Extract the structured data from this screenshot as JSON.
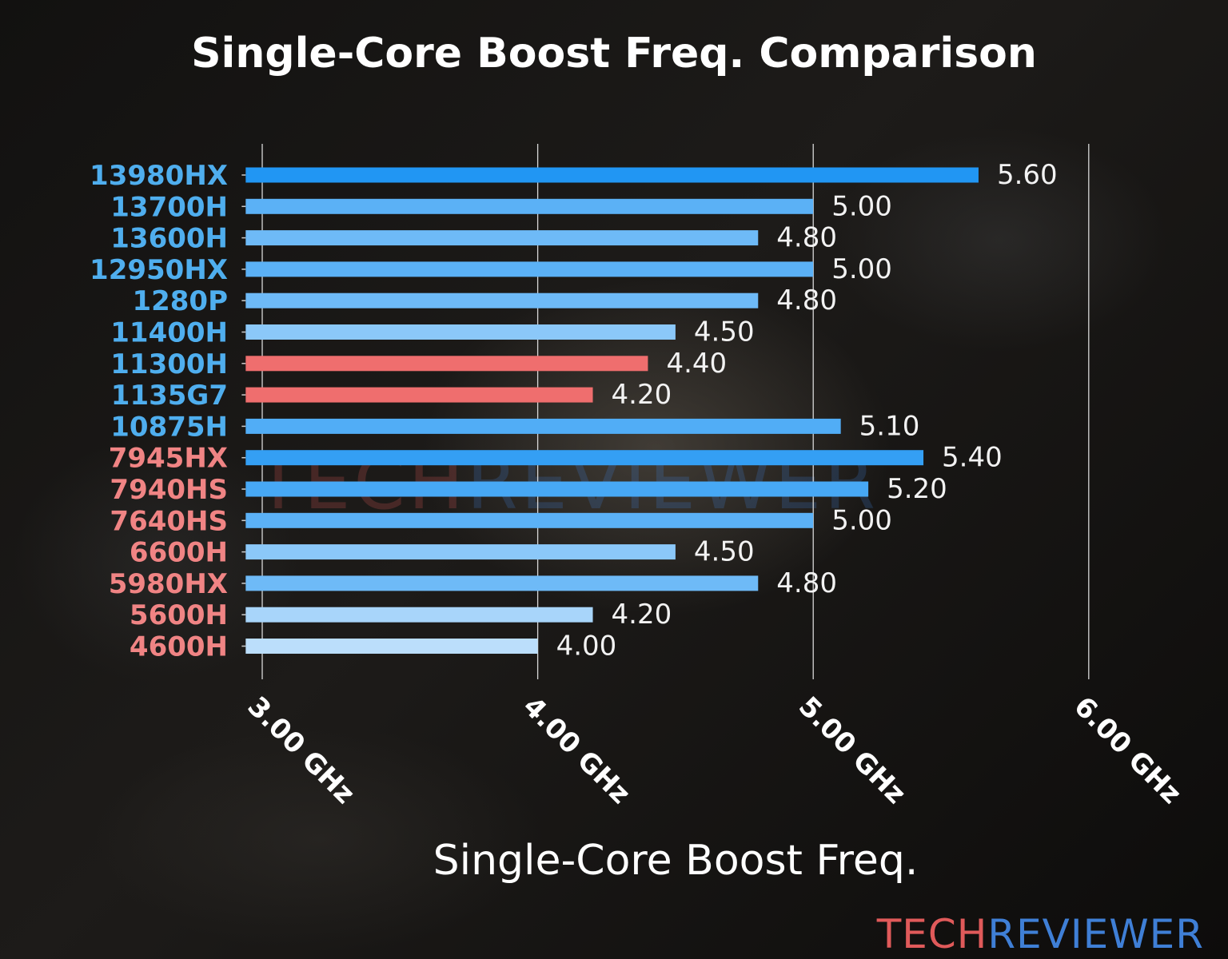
{
  "chart_data": {
    "type": "bar",
    "orientation": "horizontal",
    "title": "Single-Core Boost Freq. Comparison",
    "xlabel": "Single-Core Boost Freq.",
    "ylabel": "",
    "xlim": [
      2.94,
      6.0
    ],
    "xticks": [
      3,
      4,
      5,
      6
    ],
    "xtick_labels": [
      "3.00 GHz",
      "4.00 GHz",
      "5.00 GHz",
      "6.00 GHz"
    ],
    "grid": "vertical",
    "categories": [
      "13980HX",
      "13700H",
      "13600H",
      "12950HX",
      "1280P",
      "11400H",
      "11300H",
      "1135G7",
      "10875H",
      "7945HX",
      "7940HS",
      "7640HS",
      "6600H",
      "5980HX",
      "5600H",
      "4600H"
    ],
    "values": [
      5.6,
      5.0,
      4.8,
      5.0,
      4.8,
      4.5,
      4.4,
      4.2,
      5.1,
      5.4,
      5.2,
      5.0,
      4.5,
      4.8,
      4.2,
      4.0
    ],
    "value_labels": [
      "5.60",
      "5.00",
      "4.80",
      "5.00",
      "4.80",
      "4.50",
      "4.40",
      "4.20",
      "5.10",
      "5.40",
      "5.20",
      "5.00",
      "4.50",
      "4.80",
      "4.20",
      "4.00"
    ],
    "vendor": [
      "intel",
      "intel",
      "intel",
      "intel",
      "intel",
      "intel",
      "intel",
      "intel",
      "intel",
      "amd",
      "amd",
      "amd",
      "amd",
      "amd",
      "amd",
      "amd"
    ],
    "highlighted": [
      "11300H",
      "1135G7"
    ],
    "colors": {
      "bar_low": "#BBDEFB",
      "bar_high": "#2196F3",
      "bar_highlight": "#EF6E6E",
      "label_intel": "#4FAEEE",
      "label_amd": "#F08484"
    }
  },
  "watermark": {
    "part1": "TECH",
    "part2": "REVIEWER",
    "color1": "#E05A5A",
    "color2": "#3F7FD6"
  }
}
